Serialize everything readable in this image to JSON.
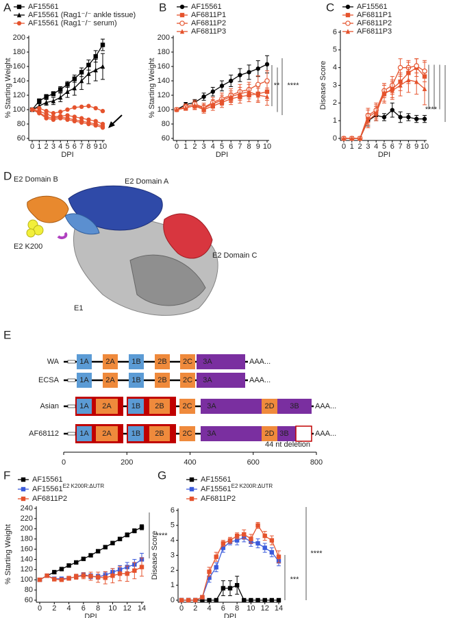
{
  "chart_data": [
    {
      "type": "line",
      "panel": "A",
      "xlabel": "DPI",
      "ylabel": "% Starting Weight",
      "x": [
        0,
        1,
        2,
        3,
        4,
        5,
        6,
        7,
        8,
        9,
        10
      ],
      "xlim": [
        0,
        10
      ],
      "xticks": [
        0,
        1,
        2,
        3,
        4,
        5,
        6,
        7,
        8,
        9,
        10
      ],
      "ylim": [
        60,
        200
      ],
      "yticks": [
        60,
        80,
        100,
        120,
        140,
        160,
        180,
        200
      ],
      "series": [
        {
          "name": "AF15561",
          "color": "#000000",
          "marker": "square",
          "values": [
            100,
            112,
            118,
            122,
            128,
            135,
            143,
            152,
            162,
            174,
            190
          ],
          "errors": [
            0,
            3,
            3,
            3,
            4,
            4,
            5,
            6,
            7,
            8,
            8
          ]
        },
        {
          "name": "AF15561 (Rag1⁻/⁻ ankle tissue)",
          "color": "#000000",
          "marker": "triangle",
          "values": [
            100,
            105,
            110,
            112,
            117,
            125,
            130,
            140,
            150,
            155,
            160
          ],
          "errors": [
            0,
            3,
            4,
            5,
            6,
            8,
            10,
            12,
            14,
            15,
            18
          ]
        },
        {
          "name": "AF15561 (Rag1⁻/⁻ serum)",
          "color": "#e5532d",
          "marker": "circle",
          "values": [
            [
              100,
              102,
              98,
              95,
              97,
              100,
              103,
              104,
              105,
              102,
              98
            ],
            [
              100,
              98,
              94,
              90,
              91,
              92,
              90,
              88,
              86,
              84,
              80
            ],
            [
              100,
              96,
              90,
              88,
              90,
              88,
              86,
              84,
              82,
              80,
              77
            ],
            [
              100,
              95,
              88,
              86,
              88,
              86,
              84,
              82,
              80,
              78,
              75
            ]
          ]
        }
      ]
    },
    {
      "type": "line",
      "panel": "B",
      "xlabel": "DPI",
      "ylabel": "% Starting Weight",
      "x": [
        0,
        1,
        2,
        3,
        4,
        5,
        6,
        7,
        8,
        9,
        10
      ],
      "xlim": [
        0,
        10
      ],
      "xticks": [
        0,
        1,
        2,
        3,
        4,
        5,
        6,
        7,
        8,
        9,
        10
      ],
      "ylim": [
        60,
        200
      ],
      "yticks": [
        60,
        80,
        100,
        120,
        140,
        160,
        180,
        200
      ],
      "annotations": [
        "**",
        "****"
      ],
      "series": [
        {
          "name": "AF15561",
          "color": "#000000",
          "marker": "circle",
          "values": [
            100,
            107,
            110,
            118,
            125,
            133,
            140,
            148,
            152,
            157,
            163
          ],
          "errors": [
            0,
            3,
            4,
            5,
            6,
            7,
            8,
            9,
            10,
            11,
            12
          ]
        },
        {
          "name": "AF6811P1",
          "color": "#e5532d",
          "marker": "square",
          "values": [
            100,
            103,
            105,
            100,
            105,
            110,
            115,
            118,
            120,
            122,
            125
          ],
          "errors": [
            0,
            4,
            5,
            5,
            6,
            7,
            8,
            9,
            9,
            10,
            12
          ]
        },
        {
          "name": "AF6811P2",
          "color": "#e5532d",
          "marker": "circle-open",
          "values": [
            100,
            104,
            108,
            103,
            110,
            115,
            120,
            125,
            128,
            135,
            140
          ],
          "errors": [
            0,
            4,
            5,
            6,
            7,
            8,
            9,
            10,
            10,
            12,
            14
          ]
        },
        {
          "name": "AF6811P3",
          "color": "#e5532d",
          "marker": "triangle",
          "values": [
            100,
            102,
            106,
            102,
            108,
            113,
            118,
            122,
            125,
            120,
            118
          ],
          "errors": [
            0,
            3,
            5,
            5,
            6,
            7,
            8,
            9,
            10,
            10,
            12
          ]
        }
      ]
    },
    {
      "type": "line",
      "panel": "C",
      "xlabel": "DPI",
      "ylabel": "Disease Score",
      "x": [
        0,
        1,
        2,
        3,
        4,
        5,
        6,
        7,
        8,
        9,
        10
      ],
      "xlim": [
        0,
        10
      ],
      "xticks": [
        0,
        1,
        2,
        3,
        4,
        5,
        6,
        7,
        8,
        9,
        10
      ],
      "ylim": [
        0,
        6
      ],
      "yticks": [
        0,
        1,
        2,
        3,
        4,
        5,
        6
      ],
      "annotations": [
        "****"
      ],
      "series": [
        {
          "name": "AF15561",
          "color": "#000000",
          "marker": "circle",
          "values": [
            0,
            0,
            0,
            1.0,
            1.3,
            1.2,
            1.6,
            1.2,
            1.2,
            1.1,
            1.1
          ],
          "errors": [
            0,
            0,
            0,
            0.3,
            0.3,
            0.2,
            0.4,
            0.3,
            0.2,
            0.2,
            0.2
          ]
        },
        {
          "name": "AF6811P1",
          "color": "#e5532d",
          "marker": "square",
          "values": [
            0,
            0,
            0,
            1.2,
            1.5,
            2.5,
            2.8,
            3.2,
            3.7,
            4.0,
            3.5
          ],
          "errors": [
            0,
            0,
            0,
            0.4,
            0.4,
            0.5,
            0.5,
            0.5,
            0.6,
            0.5,
            0.8
          ]
        },
        {
          "name": "AF6811P2",
          "color": "#e5532d",
          "marker": "circle-open",
          "values": [
            0,
            0,
            0,
            1.3,
            1.6,
            2.7,
            3.0,
            4.0,
            4.0,
            4.1,
            3.8
          ],
          "errors": [
            0,
            0,
            0,
            0.4,
            0.4,
            0.4,
            0.5,
            0.5,
            0.4,
            0.4,
            0.6
          ]
        },
        {
          "name": "AF6811P3",
          "color": "#e5532d",
          "marker": "triangle",
          "values": [
            0,
            0,
            0,
            1.0,
            1.4,
            2.6,
            2.7,
            3.0,
            3.3,
            3.2,
            2.8
          ],
          "errors": [
            0,
            0,
            0,
            0.4,
            0.4,
            0.5,
            0.5,
            0.6,
            0.7,
            0.7,
            0.9
          ]
        }
      ]
    },
    {
      "type": "line",
      "panel": "F",
      "xlabel": "DPI",
      "ylabel": "% Starting Weight",
      "x": [
        0,
        1,
        2,
        3,
        4,
        5,
        6,
        7,
        8,
        9,
        10,
        11,
        12,
        13,
        14
      ],
      "xlim": [
        0,
        14
      ],
      "xticks": [
        0,
        2,
        4,
        6,
        8,
        10,
        12,
        14
      ],
      "ylim": [
        60,
        240
      ],
      "yticks": [
        60,
        80,
        100,
        120,
        140,
        160,
        180,
        200,
        220,
        240
      ],
      "annotations": [
        "****"
      ],
      "series": [
        {
          "name": "AF15561",
          "color": "#000000",
          "marker": "square",
          "values": [
            100,
            108,
            115,
            121,
            128,
            134,
            141,
            148,
            156,
            164,
            172,
            180,
            188,
            196,
            203
          ],
          "errors": [
            0,
            2,
            2,
            2,
            2,
            2,
            2,
            2,
            3,
            3,
            3,
            3,
            4,
            4,
            5
          ]
        },
        {
          "name": "AF15561",
          "name_sup": "E2 K200R:ΔUTR",
          "color": "#3b5bdb",
          "marker": "square",
          "values": [
            100,
            108,
            102,
            102,
            103,
            106,
            110,
            107,
            106,
            109,
            115,
            120,
            125,
            130,
            140
          ],
          "errors": [
            0,
            2,
            3,
            3,
            3,
            4,
            4,
            5,
            5,
            6,
            7,
            8,
            9,
            10,
            12
          ]
        },
        {
          "name": "AF6811P2",
          "color": "#e5532d",
          "marker": "square",
          "values": [
            100,
            108,
            101,
            100,
            103,
            106,
            108,
            107,
            105,
            104,
            108,
            112,
            112,
            118,
            125
          ],
          "errors": [
            0,
            2,
            3,
            3,
            4,
            5,
            6,
            8,
            10,
            12,
            14,
            14,
            15,
            16,
            18
          ]
        }
      ]
    },
    {
      "type": "line",
      "panel": "G",
      "xlabel": "DPI",
      "ylabel": "Disease Score",
      "x": [
        0,
        1,
        2,
        3,
        4,
        5,
        6,
        7,
        8,
        9,
        10,
        11,
        12,
        13,
        14
      ],
      "xlim": [
        0,
        14
      ],
      "xticks": [
        0,
        2,
        4,
        6,
        8,
        10,
        12,
        14
      ],
      "ylim": [
        0,
        6
      ],
      "yticks": [
        0,
        1,
        2,
        3,
        4,
        5,
        6
      ],
      "annotations": [
        "***",
        "****"
      ],
      "series": [
        {
          "name": "AF15561",
          "color": "#000000",
          "marker": "square",
          "values": [
            0,
            0,
            0,
            0,
            0,
            0,
            0.8,
            0.8,
            1.0,
            0,
            0,
            0,
            0,
            0,
            0
          ],
          "errors": [
            0,
            0,
            0,
            0,
            0,
            0,
            0.5,
            0.5,
            0.6,
            0,
            0,
            0,
            0,
            0,
            0
          ]
        },
        {
          "name": "AF15561",
          "name_sup": "E2 K200R:ΔUTR",
          "color": "#3b5bdb",
          "marker": "square",
          "values": [
            0,
            0,
            0,
            0.2,
            1.5,
            2.2,
            3.5,
            3.9,
            4.0,
            4.2,
            3.9,
            3.8,
            3.5,
            3.2,
            2.6
          ],
          "errors": [
            0,
            0,
            0,
            0.1,
            0.3,
            0.3,
            0.3,
            0.2,
            0.3,
            0.3,
            0.3,
            0.3,
            0.3,
            0.3,
            0.3
          ]
        },
        {
          "name": "AF6811P2",
          "color": "#e5532d",
          "marker": "square",
          "values": [
            0,
            0,
            0,
            0.2,
            1.9,
            2.9,
            3.8,
            4.0,
            4.3,
            4.4,
            4.1,
            5.0,
            4.3,
            4.0,
            2.9
          ],
          "errors": [
            0,
            0,
            0,
            0.1,
            0.3,
            0.3,
            0.2,
            0.2,
            0.2,
            0.3,
            0.3,
            0.2,
            0.3,
            0.3,
            0.4
          ]
        }
      ]
    }
  ],
  "structure": {
    "panel": "D",
    "labels": [
      "E2 Domain B",
      "E2 Domain A",
      "E2 K200",
      "E2 Domain C",
      "E1"
    ]
  },
  "genome": {
    "panel": "E",
    "tail": "AAA...",
    "note": "44 nt deletion",
    "xlim": [
      0,
      800
    ],
    "xticks": [
      0,
      200,
      400,
      600,
      800
    ],
    "rows": [
      {
        "name": "WA",
        "segments": [
          "1A",
          "2A",
          "1B",
          "2B",
          "2C",
          "3A"
        ]
      },
      {
        "name": "ECSA",
        "segments": [
          "1A",
          "2A",
          "1B",
          "2B",
          "2C",
          "3A"
        ]
      },
      {
        "name": "Asian",
        "segments": [
          "1A",
          "2A",
          "1B",
          "2B",
          "2C",
          "3A",
          "2D",
          "3B"
        ]
      },
      {
        "name": "AF68112",
        "segments": [
          "1A",
          "2A",
          "1B",
          "2B",
          "2C",
          "3A",
          "2D",
          "3B"
        ]
      }
    ]
  }
}
